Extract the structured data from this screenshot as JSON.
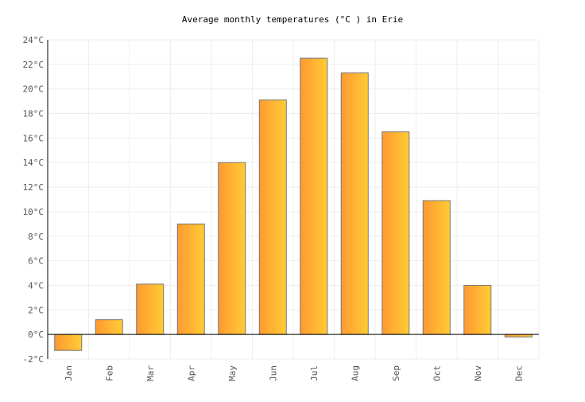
{
  "chart_data": {
    "type": "bar",
    "title": "Average monthly temperatures (°C ) in Erie",
    "xlabel": "",
    "ylabel": "",
    "categories": [
      "Jan",
      "Feb",
      "Mar",
      "Apr",
      "May",
      "Jun",
      "Jul",
      "Aug",
      "Sep",
      "Oct",
      "Nov",
      "Dec"
    ],
    "values": [
      -1.3,
      1.2,
      4.1,
      9.0,
      14.0,
      19.1,
      22.5,
      21.3,
      16.5,
      10.9,
      4.0,
      -0.2
    ],
    "ylim": [
      -2,
      24
    ],
    "yticks": [
      "-2°C",
      "0°C",
      "2°C",
      "4°C",
      "6°C",
      "8°C",
      "10°C",
      "12°C",
      "14°C",
      "16°C",
      "18°C",
      "20°C",
      "22°C",
      "24°C"
    ],
    "grid": true,
    "colors": {
      "bar_start": "#ff9933",
      "bar_end": "#ffcc33",
      "bar_stroke": "#777777",
      "grid": "#eeeeee"
    }
  }
}
